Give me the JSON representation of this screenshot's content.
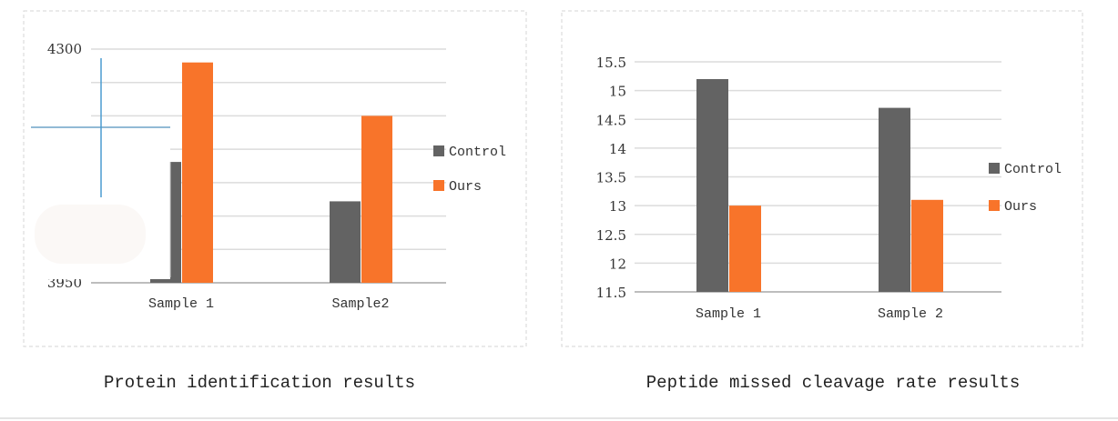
{
  "chart_data": [
    {
      "type": "bar",
      "title": "Protein identification results",
      "categories": [
        "Sample 1",
        "Sample2"
      ],
      "series": [
        {
          "name": "Control",
          "color": "#636363",
          "values": [
            4131,
            4072
          ]
        },
        {
          "name": "Ours",
          "color": "#f8742a",
          "values": [
            4280,
            4200
          ]
        }
      ],
      "ylim": [
        3950,
        4300
      ],
      "yticks_labeled": [
        "4300",
        "3950"
      ],
      "gridlines": 8,
      "legend": "right"
    },
    {
      "type": "bar",
      "title": "Peptide missed cleavage rate results",
      "categories": [
        "Sample 1",
        "Sample 2"
      ],
      "series": [
        {
          "name": "Control",
          "color": "#636363",
          "values": [
            15.2,
            14.7
          ]
        },
        {
          "name": "Ours",
          "color": "#f8742a",
          "values": [
            13.0,
            13.1
          ]
        }
      ],
      "ylim": [
        11.5,
        15.5
      ],
      "yticks_labeled": [
        "15.5",
        "15",
        "14.5",
        "14",
        "13.5",
        "13",
        "12.5",
        "12",
        "11.5"
      ],
      "legend": "right"
    }
  ]
}
